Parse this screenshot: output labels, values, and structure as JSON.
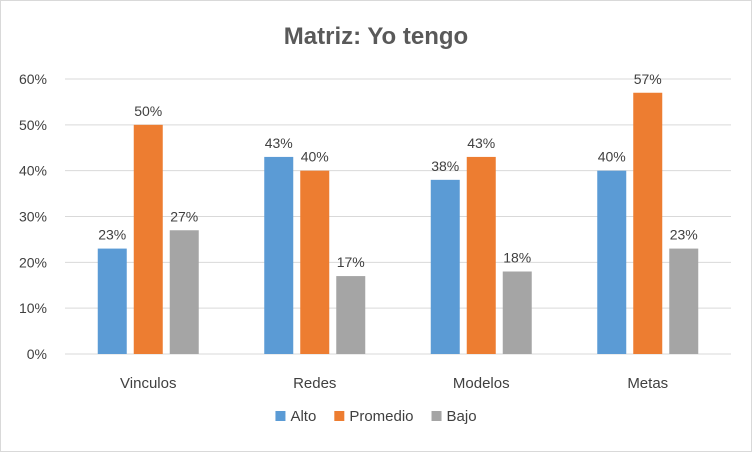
{
  "chart_data": {
    "type": "bar",
    "title": "Matriz: Yo tengo",
    "xlabel": "",
    "ylabel": "",
    "categories": [
      "Vinculos",
      "Redes",
      "Modelos",
      "Metas"
    ],
    "series": [
      {
        "name": "Alto",
        "color": "#5b9bd5",
        "values": [
          23,
          43,
          38,
          40
        ],
        "labels": [
          "23%",
          "43%",
          "38%",
          "40%"
        ]
      },
      {
        "name": "Promedio",
        "color": "#ed7d31",
        "values": [
          50,
          40,
          43,
          57
        ],
        "labels": [
          "50%",
          "40%",
          "43%",
          "57%"
        ]
      },
      {
        "name": "Bajo",
        "color": "#a5a5a5",
        "values": [
          27,
          17,
          18,
          23
        ],
        "labels": [
          "27%",
          "17%",
          "18%",
          "23%"
        ]
      }
    ],
    "ylim": [
      0,
      60
    ],
    "yticks": [
      0,
      10,
      20,
      30,
      40,
      50,
      60
    ],
    "ytick_labels": [
      "0%",
      "10%",
      "20%",
      "30%",
      "40%",
      "50%",
      "60%"
    ],
    "grid": true,
    "legend": "bottom",
    "gridline_color": "#d9d9d9"
  }
}
